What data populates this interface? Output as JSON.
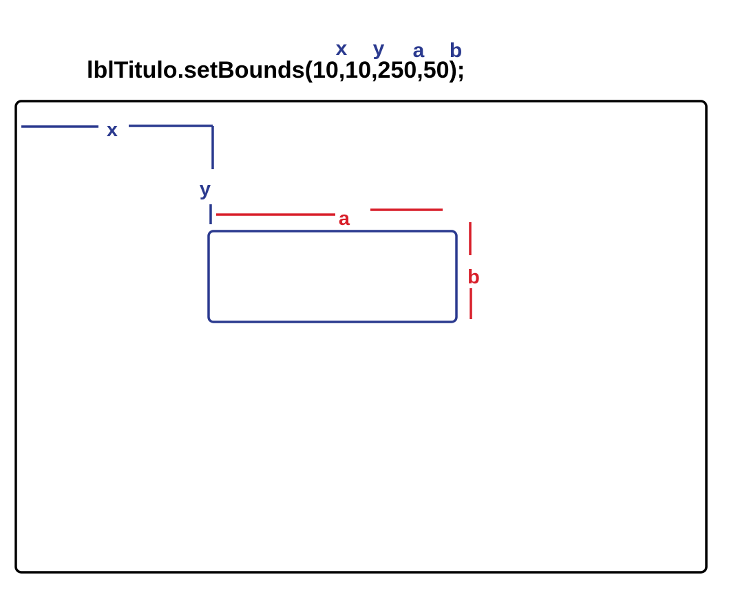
{
  "code_line": "lblTitulo.setBounds(10,10,250,50);",
  "parameter_labels": {
    "x": "x",
    "y": "y",
    "a": "a",
    "b": "b"
  },
  "dimension_labels": {
    "x": "x",
    "y": "y",
    "a": "a",
    "b": "b"
  },
  "colors": {
    "position_color": "#2b3a8f",
    "size_color": "#d81f2a",
    "outline_color": "#000000",
    "background": "#ffffff"
  }
}
